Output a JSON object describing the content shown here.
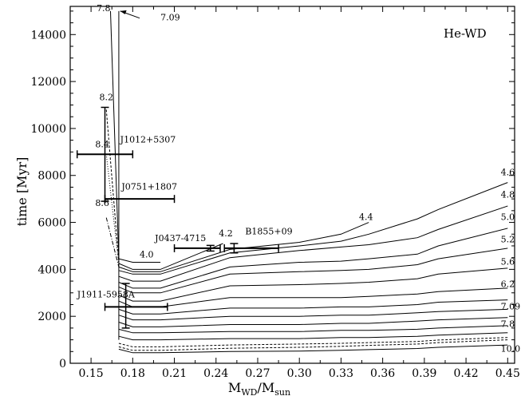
{
  "chart_data": {
    "type": "line",
    "title": "",
    "annotation": "He-WD",
    "xlabel": {
      "main": "M",
      "sub1": "WD",
      "slash": "/M",
      "sub2": "sun"
    },
    "ylabel": "time [Myr]",
    "xlim": [
      0.135,
      0.455
    ],
    "ylim": [
      0,
      15200
    ],
    "xticks": [
      "0.15",
      "0.18",
      "0.21",
      "0.24",
      "0.27",
      "0.30",
      "0.33",
      "0.36",
      "0.39",
      "0.42",
      "0.45"
    ],
    "yticks": [
      "0",
      "2000",
      "4000",
      "6000",
      "8000",
      "10000",
      "12000",
      "14000"
    ],
    "series": [
      {
        "name": "4.0",
        "dash": "",
        "x": [
          0.17,
          0.18,
          0.2
        ],
        "y": [
          4450,
          4300,
          4300
        ]
      },
      {
        "name": "4.2",
        "dash": "",
        "x": [
          0.17,
          0.18,
          0.2,
          0.245
        ],
        "y": [
          4250,
          4000,
          4000,
          5100
        ]
      },
      {
        "name": "4.4",
        "dash": "",
        "x": [
          0.17,
          0.18,
          0.2,
          0.25,
          0.3,
          0.33,
          0.35
        ],
        "y": [
          4100,
          3900,
          3900,
          4850,
          5150,
          5500,
          6000
        ]
      },
      {
        "name": "4.6",
        "dash": "",
        "x": [
          0.17,
          0.18,
          0.2,
          0.25,
          0.3,
          0.33,
          0.35,
          0.385,
          0.4,
          0.45
        ],
        "y": [
          3950,
          3800,
          3800,
          4700,
          5000,
          5200,
          5500,
          6150,
          6550,
          7700
        ]
      },
      {
        "name": "4.8",
        "dash": "",
        "x": [
          0.17,
          0.18,
          0.2,
          0.25,
          0.3,
          0.33,
          0.35,
          0.385,
          0.4,
          0.45
        ],
        "y": [
          3700,
          3500,
          3500,
          4500,
          4800,
          4950,
          5050,
          5350,
          5700,
          6700
        ]
      },
      {
        "name": "5.0",
        "dash": "",
        "x": [
          0.17,
          0.18,
          0.2,
          0.25,
          0.3,
          0.33,
          0.35,
          0.385,
          0.4,
          0.45
        ],
        "y": [
          3450,
          3200,
          3200,
          4100,
          4300,
          4350,
          4450,
          4650,
          5000,
          5750
        ]
      },
      {
        "name": "5.2",
        "dash": "",
        "x": [
          0.17,
          0.18,
          0.2,
          0.25,
          0.3,
          0.33,
          0.35,
          0.385,
          0.4,
          0.45
        ],
        "y": [
          3250,
          3000,
          3000,
          3800,
          3900,
          3950,
          4000,
          4200,
          4450,
          4900
        ]
      },
      {
        "name": "5.6",
        "dash": "",
        "x": [
          0.17,
          0.18,
          0.2,
          0.25,
          0.3,
          0.33,
          0.35,
          0.385,
          0.4,
          0.45
        ],
        "y": [
          2900,
          2650,
          2650,
          3300,
          3350,
          3400,
          3450,
          3600,
          3800,
          4050
        ]
      },
      {
        "name": "6.2",
        "dash": "",
        "x": [
          0.17,
          0.18,
          0.2,
          0.25,
          0.3,
          0.33,
          0.35,
          0.385,
          0.4,
          0.45
        ],
        "y": [
          2650,
          2400,
          2400,
          2800,
          2800,
          2800,
          2850,
          2950,
          3050,
          3200
        ]
      },
      {
        "name": "",
        "dash": "",
        "x": [
          0.17,
          0.18,
          0.2,
          0.25,
          0.3,
          0.33,
          0.35,
          0.385,
          0.4,
          0.45
        ],
        "y": [
          2300,
          2100,
          2100,
          2350,
          2350,
          2400,
          2400,
          2500,
          2600,
          2700
        ]
      },
      {
        "name": "",
        "dash": "",
        "x": [
          0.17,
          0.18,
          0.2,
          0.25,
          0.3,
          0.33,
          0.35,
          0.385,
          0.4,
          0.45
        ],
        "y": [
          2050,
          1850,
          1850,
          2000,
          2000,
          2050,
          2050,
          2150,
          2200,
          2300
        ]
      },
      {
        "name": "7.09",
        "dash": "",
        "x": [
          0.17,
          0.18,
          0.2,
          0.25,
          0.3,
          0.33,
          0.35,
          0.385,
          0.4,
          0.45
        ],
        "y": [
          1750,
          1550,
          1550,
          1650,
          1650,
          1700,
          1700,
          1800,
          1850,
          1950
        ]
      },
      {
        "name": "",
        "dash": "",
        "x": [
          0.17,
          0.18,
          0.2,
          0.25,
          0.3,
          0.33,
          0.35,
          0.385,
          0.4,
          0.45
        ],
        "y": [
          1450,
          1300,
          1300,
          1350,
          1350,
          1400,
          1400,
          1450,
          1500,
          1600
        ]
      },
      {
        "name": "7.8",
        "dash": "",
        "x": [
          0.17,
          0.18,
          0.2,
          0.25,
          0.3,
          0.33,
          0.35,
          0.385,
          0.4,
          0.45
        ],
        "y": [
          1150,
          1000,
          1000,
          1050,
          1050,
          1100,
          1100,
          1150,
          1200,
          1300
        ]
      },
      {
        "name": "",
        "dash": "3,2",
        "x": [
          0.17,
          0.18,
          0.2,
          0.25,
          0.3,
          0.33,
          0.35,
          0.385,
          0.4,
          0.45
        ],
        "y": [
          850,
          700,
          700,
          780,
          820,
          850,
          880,
          930,
          990,
          1100
        ]
      },
      {
        "name": "",
        "dash": "3,2",
        "x": [
          0.17,
          0.18,
          0.2,
          0.25,
          0.3,
          0.33,
          0.35,
          0.385,
          0.4,
          0.45
        ],
        "y": [
          700,
          550,
          550,
          640,
          680,
          720,
          760,
          820,
          880,
          1000
        ]
      },
      {
        "name": "10.0",
        "dash": "",
        "x": [
          0.17,
          0.18,
          0.2,
          0.25,
          0.3,
          0.33,
          0.35,
          0.385,
          0.4,
          0.45
        ],
        "y": [
          600,
          450,
          450,
          500,
          520,
          550,
          580,
          630,
          680,
          780
        ]
      }
    ],
    "vertical_lines": [
      {
        "x": [
          0.17,
          0.17
        ],
        "y": [
          1000,
          15000
        ],
        "dash": ""
      },
      {
        "x": [
          0.164,
          0.17
        ],
        "y": [
          15000,
          4400
        ],
        "dash": ""
      },
      {
        "x": [
          0.161,
          0.17
        ],
        "y": [
          10800,
          4300
        ],
        "dash": "3,2"
      },
      {
        "x": [
          0.161,
          0.17
        ],
        "y": [
          8900,
          4200
        ],
        "dash": "1,2"
      },
      {
        "x": [
          0.161,
          0.17
        ],
        "y": [
          6200,
          4100
        ],
        "dash": "5,2,1,2"
      }
    ],
    "line_labels": [
      {
        "text": "7.8",
        "x": 0.154,
        "y": 15000
      },
      {
        "text": "8.2",
        "x": 0.156,
        "y": 11200
      },
      {
        "text": "8.4",
        "x": 0.153,
        "y": 9200
      },
      {
        "text": "8.6",
        "x": 0.153,
        "y": 6700
      }
    ],
    "top_annotation": {
      "text": "7.09",
      "arrow_from": [
        0.185,
        14700
      ],
      "arrow_to": [
        0.171,
        15000
      ],
      "text_x": 0.2,
      "text_y": 14600
    },
    "stars": [
      {
        "name": "J1012+5307",
        "x": 0.16,
        "xerr": [
          0.02,
          0.02
        ],
        "y": 8900,
        "yerr": [
          2000,
          2000
        ],
        "label_x": 0.171,
        "label_y": 9400
      },
      {
        "name": "J0751+1807",
        "x": 0.16,
        "xerr": [
          0.0,
          0.05
        ],
        "y": 7000,
        "yerr": [
          0,
          0
        ],
        "label_x": 0.172,
        "label_y": 7400
      },
      {
        "name": "J0437-4715",
        "x": 0.236,
        "xerr": [
          0.026,
          0.007
        ],
        "y": 4900,
        "yerr": [
          120,
          120
        ],
        "label_x": 0.196,
        "label_y": 5200
      },
      {
        "name": "B1855+09",
        "x": 0.253,
        "xerr": [
          0.007,
          0.032
        ],
        "y": 4900,
        "yerr": [
          200,
          200
        ],
        "label_x": 0.261,
        "label_y": 5500
      },
      {
        "name": "J1911-5958A",
        "x": 0.175,
        "xerr": [
          0.015,
          0.03
        ],
        "y": 2400,
        "yerr": [
          900,
          1000
        ],
        "label_x": 0.14,
        "label_y": 2800
      }
    ],
    "curve_labels": [
      {
        "text": "4.0",
        "x": 0.185,
        "y": 4500
      },
      {
        "text": "4.2",
        "x": 0.242,
        "y": 5400
      },
      {
        "text": "4.4",
        "x": 0.343,
        "y": 6100
      },
      {
        "text": "4.6",
        "x": 0.445,
        "y": 8000
      },
      {
        "text": "4.8",
        "x": 0.445,
        "y": 7050
      },
      {
        "text": "5.0",
        "x": 0.445,
        "y": 6100
      },
      {
        "text": "5.2",
        "x": 0.445,
        "y": 5150
      },
      {
        "text": "5.6",
        "x": 0.445,
        "y": 4200
      },
      {
        "text": "6.2",
        "x": 0.445,
        "y": 3250
      },
      {
        "text": "7.09",
        "x": 0.445,
        "y": 2300
      },
      {
        "text": "7.8",
        "x": 0.445,
        "y": 1550
      },
      {
        "text": "10.0",
        "x": 0.445,
        "y": 500
      }
    ]
  }
}
